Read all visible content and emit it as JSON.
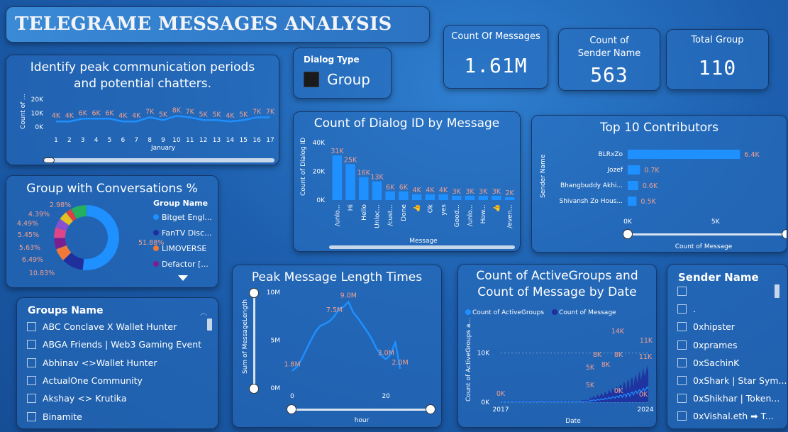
{
  "header": {
    "title": "TELEGRAME MESSAGES ANALYSIS"
  },
  "dialog_type": {
    "title": "Dialog Type",
    "value": "Group"
  },
  "kpis": [
    {
      "title": "Count Of Messages",
      "value": "1.61M"
    },
    {
      "title": "Count of Sender Name",
      "value": "563"
    },
    {
      "title": "Total Group",
      "value": "110"
    }
  ],
  "chart_data": [
    {
      "id": "peak",
      "type": "line",
      "title": "Identify peak communication periods and potential chatters.",
      "xlabel": "January",
      "ylabel": "Count of ...",
      "y_ticks": [
        "20K",
        "10K",
        "0K"
      ],
      "ylim": [
        0,
        20000
      ],
      "x": [
        1,
        2,
        3,
        4,
        5,
        6,
        7,
        8,
        9,
        10,
        11,
        12,
        13,
        14,
        15,
        16,
        17
      ],
      "values": [
        4000,
        4000,
        6000,
        6000,
        6000,
        4000,
        4000,
        7000,
        5000,
        8000,
        7000,
        5000,
        5000,
        4000,
        5000,
        7000,
        7000
      ],
      "labels": [
        "4K",
        "4K",
        "6K",
        "6K",
        "6K",
        "4K",
        "4K",
        "7K",
        "5K",
        "8K",
        "7K",
        "5K",
        "5K",
        "4K",
        "5K",
        "7K",
        "7K"
      ]
    },
    {
      "id": "groups_pie",
      "type": "pie",
      "title": "Group with Conversations %",
      "legend_title": "Group Name",
      "legend": [
        {
          "name": "Bitget Engl...",
          "color": "#1e90ff"
        },
        {
          "name": "FanTV Disc...",
          "color": "#1f2f9e"
        },
        {
          "name": "LIMOVERSE",
          "color": "#f07838"
        },
        {
          "name": "Defactor [...",
          "color": "#7a1f8f"
        }
      ],
      "slices": [
        {
          "value": 51.88,
          "label": "51.88%",
          "color": "#1e90ff"
        },
        {
          "value": 10.83,
          "label": "10.83%",
          "color": "#1f2f9e"
        },
        {
          "value": 6.49,
          "label": "6.49%",
          "color": "#f07838"
        },
        {
          "value": 5.63,
          "label": "5.63%",
          "color": "#7a1f8f"
        },
        {
          "value": 5.45,
          "label": "5.45%",
          "color": "#e0458a"
        },
        {
          "value": 4.49,
          "label": "4.49%",
          "color": "#8a4fd0"
        },
        {
          "value": 4.39,
          "label": "4.39%",
          "color": "#e5c020"
        },
        {
          "value": 2.98,
          "label": "2.98%",
          "color": "#e04040"
        },
        {
          "value": 7.86,
          "label": "",
          "color": "#25b060"
        }
      ]
    },
    {
      "id": "dialog_bar",
      "type": "bar",
      "title": "Count of Dialog ID by Message",
      "xlabel": "Message",
      "ylabel": "Count of Dialog ID",
      "y_ticks": [
        "40K",
        "20K",
        "0K"
      ],
      "ylim": [
        0,
        40000
      ],
      "categories": [
        "/unlo...",
        "Hi",
        "Hello",
        "Unloc...",
        "/cust...",
        "Done",
        "👍",
        "Ok",
        "yes",
        "Good...",
        "/unlo...",
        "How...",
        "👍",
        "/even..."
      ],
      "values": [
        31000,
        25000,
        16000,
        13000,
        6000,
        6000,
        4000,
        4000,
        4000,
        3000,
        3000,
        3000,
        3000,
        2000
      ],
      "labels": [
        "31K",
        "25K",
        "16K",
        "13K",
        "6K",
        "6K",
        "4K",
        "4K",
        "4K",
        "3K",
        "3K",
        "3K",
        "3K",
        "2K"
      ]
    },
    {
      "id": "contributors",
      "type": "bar",
      "title": "Top 10 Contributors",
      "xlabel": "Count of Message",
      "ylabel": "Sender Name",
      "x_ticks": [
        "0K",
        "5K"
      ],
      "xlim": [
        0,
        8000
      ],
      "categories": [
        "BLRxZo",
        "Jozef",
        "Bhangbuddy Akhi...",
        "Shivansh Zo Hous..."
      ],
      "values": [
        6400,
        700,
        600,
        500
      ],
      "labels": [
        "6.4K",
        "0.7K",
        "0.6K",
        "0.5K"
      ]
    },
    {
      "id": "msglen",
      "type": "line",
      "title": "Peak Message Length Times",
      "xlabel": "hour",
      "ylabel": "Sum of MessageLength",
      "y_ticks": [
        "10M",
        "5M",
        "0M"
      ],
      "ylim": [
        0,
        10000000
      ],
      "x_ticks": [
        "0",
        "20"
      ],
      "x": [
        0,
        1,
        2,
        3,
        4,
        5,
        6,
        7,
        8,
        9,
        10,
        11,
        12,
        13,
        14,
        15,
        16,
        17,
        18,
        19,
        20,
        21,
        22,
        23
      ],
      "values": [
        1800000,
        2200000,
        3000000,
        4000000,
        5000000,
        5900000,
        6500000,
        6700000,
        7000000,
        7500000,
        8300000,
        8500000,
        9000000,
        7900000,
        7300000,
        6600000,
        5900000,
        5100000,
        4100000,
        3400000,
        3000000,
        3500000,
        4800000,
        2000000
      ],
      "point_labels": [
        {
          "x": 0,
          "label": "1.8M"
        },
        {
          "x": 9,
          "label": "7.5M"
        },
        {
          "x": 12,
          "label": "9.0M"
        },
        {
          "x": 20,
          "label": "3.0M"
        },
        {
          "x": 23,
          "label": "2.0M"
        }
      ]
    },
    {
      "id": "active_groups",
      "type": "area",
      "title": "Count of ActiveGroups and Count of Message by Date",
      "xlabel": "Date",
      "ylabel": "Count of ActiveGroups a...",
      "y_ticks": [
        "10K",
        "0K"
      ],
      "ylim": [
        0,
        15000
      ],
      "x_ticks": [
        "2017",
        "2024"
      ],
      "series": [
        {
          "name": "Count of ActiveGroups",
          "color": "#1e90ff"
        },
        {
          "name": "Count of Message",
          "color": "#1f2f9e"
        }
      ],
      "labels": [
        "0K",
        "14K",
        "11K",
        "8K",
        "8K",
        "11K",
        "5K",
        "8K",
        "5K",
        "0K",
        "0K"
      ]
    }
  ],
  "groups_slicer": {
    "title": "Groups Name",
    "items": [
      "ABC Conclave X Wallet Hunter",
      "ABGA Friends | Web3 Gaming Event",
      "Abhinav <>Wallet Hunter",
      "ActualOne Community",
      "Akshay <> Krutika",
      "Binamite"
    ]
  },
  "sender_slicer": {
    "title": "Sender Name",
    "items": [
      "",
      ".",
      "0xhipster",
      "0xprames",
      "0xSachinK",
      "0xShark | Star Sym...",
      "0xShikhar | Token...",
      "0xVishal.eth ➡ T..."
    ]
  },
  "colors": {
    "accent": "#1e90ff",
    "label": "#f0a090",
    "dark_series": "#1f2f9e"
  }
}
